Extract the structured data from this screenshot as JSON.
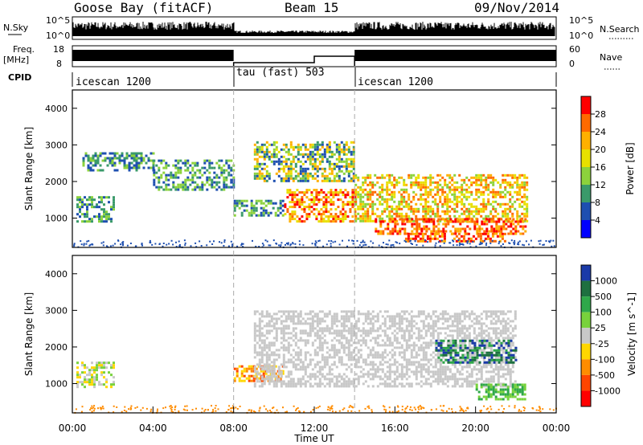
{
  "header": {
    "station": "Goose Bay (fitACF)",
    "beam": "Beam 15",
    "date": "09/Nov/2014"
  },
  "strip_labels": {
    "nsky": "N.Sky",
    "nsky_ticks": [
      "10^5",
      "10^0"
    ],
    "nsearch": "N.Search",
    "nsearch_ticks": [
      "10^5",
      "10^0"
    ],
    "freq": "Freq.",
    "freq_unit": "[MHz]",
    "freq_ticks": [
      "18",
      "8"
    ],
    "nave": "Nave",
    "nave_ticks": [
      "60",
      "0"
    ],
    "cpid": "CPID"
  },
  "cpid_segments": [
    {
      "label": "icescan 1200",
      "start_hour": 0,
      "end_hour": 8
    },
    {
      "label": "tau (fast) 503",
      "start_hour": 8,
      "end_hour": 14
    },
    {
      "label": "icescan 1200",
      "start_hour": 14,
      "end_hour": 24
    }
  ],
  "panels": {
    "power": {
      "ylabel": "Slant Range [km]",
      "colorbar_label": "Power [dB]",
      "colorbar_ticks": [
        "28",
        "24",
        "20",
        "16",
        "12",
        "8",
        "4"
      ],
      "colorbar_colors": [
        "#ff0000",
        "#ff6a00",
        "#ffb000",
        "#e8e000",
        "#8cd23c",
        "#3a9a6a",
        "#1e4fb0",
        "#0000ff"
      ]
    },
    "velocity": {
      "ylabel": "Slant Range [km]",
      "colorbar_label": "Velocity [m s^-1]",
      "colorbar_ticks": [
        "1000",
        "500",
        "100",
        "25",
        "-25",
        "-100",
        "-500",
        "-1000"
      ],
      "colorbar_colors": [
        "#1a3aa8",
        "#1e7040",
        "#2fa84a",
        "#78d23c",
        "#c8c8c8",
        "#ffd700",
        "#ff8c00",
        "#ff4500",
        "#ff0000"
      ]
    }
  },
  "xaxis": {
    "label": "Time UT",
    "ticks": [
      "00:00",
      "04:00",
      "08:00",
      "12:00",
      "16:00",
      "20:00",
      "00:00"
    ]
  },
  "chart_data": {
    "type": "heatmap",
    "x_range_hours": [
      0,
      24
    ],
    "y_range_km": [
      200,
      4500
    ],
    "y_ticks_km": [
      1000,
      2000,
      3000,
      4000
    ],
    "mode_changes_hours": [
      8,
      14
    ],
    "nave_series": [
      {
        "start_hour": 8,
        "end_hour": 12,
        "value": 10
      },
      {
        "start_hour": 12,
        "end_hour": 14,
        "value": 30
      }
    ],
    "power_regions": [
      {
        "t0": 0.2,
        "t1": 2.0,
        "r0": 900,
        "r1": 1600,
        "level": "8-16 dB"
      },
      {
        "t0": 0.5,
        "t1": 4.0,
        "r0": 2300,
        "r1": 2800,
        "level": "8-12 dB"
      },
      {
        "t0": 4.0,
        "t1": 8.0,
        "r0": 1800,
        "r1": 2600,
        "level": "8-12 dB"
      },
      {
        "t0": 8.0,
        "t1": 10.5,
        "r0": 1100,
        "r1": 1500,
        "level": "8-16 dB"
      },
      {
        "t0": 9.0,
        "t1": 14.0,
        "r0": 2000,
        "r1": 3100,
        "level": "8-20 dB"
      },
      {
        "t0": 10.5,
        "t1": 14.0,
        "r0": 900,
        "r1": 1800,
        "level": "16-28 dB"
      },
      {
        "t0": 14.0,
        "t1": 22.5,
        "r0": 900,
        "r1": 2200,
        "level": "12-24 dB"
      },
      {
        "t0": 15.0,
        "t1": 22.5,
        "r0": 600,
        "r1": 1000,
        "level": "20-28 dB"
      },
      {
        "t0": 16.5,
        "t1": 21.5,
        "r0": 400,
        "r1": 600,
        "level": "24-28 dB"
      }
    ],
    "velocity_regions": [
      {
        "t0": 0.2,
        "t1": 2.0,
        "r0": 900,
        "r1": 1600,
        "level": "-100 to 100"
      },
      {
        "t0": 8.0,
        "t1": 10.5,
        "r0": 1100,
        "r1": 1500,
        "level": "-500 to -100"
      },
      {
        "t0": 9.0,
        "t1": 22.0,
        "r0": 900,
        "r1": 3000,
        "level": "-25 to 25 (ground scatter)"
      },
      {
        "t0": 18.0,
        "t1": 22.0,
        "r0": 1600,
        "r1": 2200,
        "level": "100 to 1000"
      },
      {
        "t0": 20.0,
        "t1": 22.5,
        "r0": 600,
        "r1": 1000,
        "level": "25 to 500"
      }
    ]
  }
}
